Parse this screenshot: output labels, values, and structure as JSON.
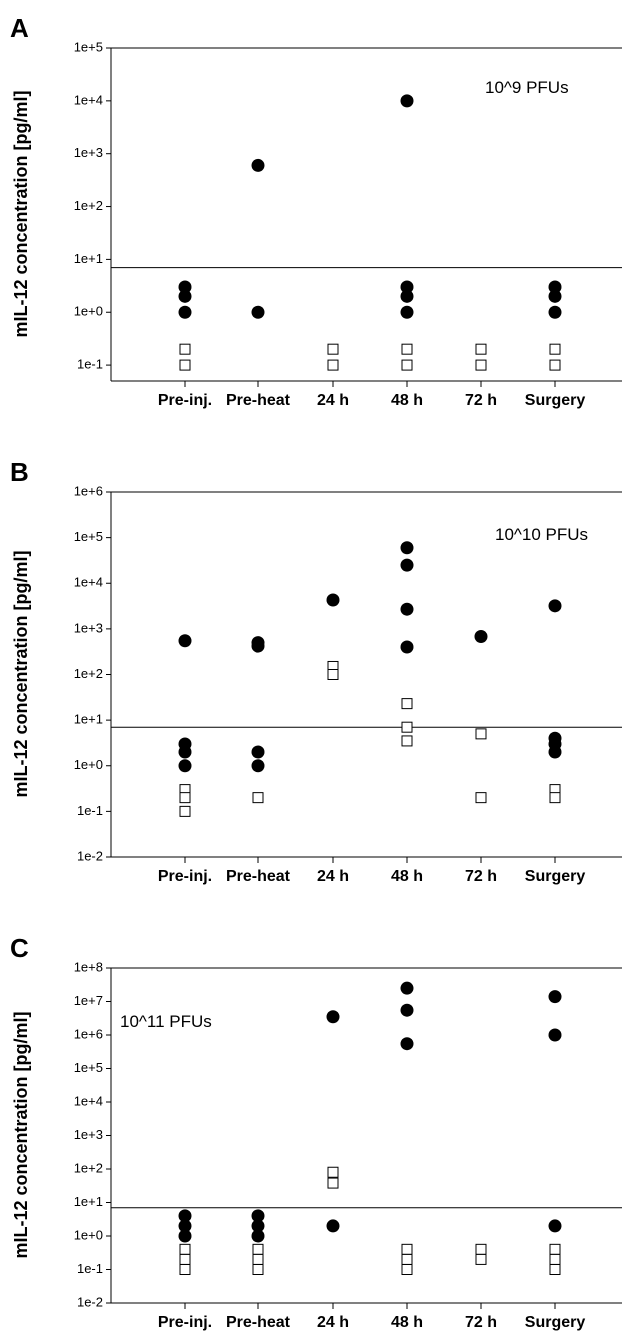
{
  "chart_data": [
    {
      "type": "scatter",
      "panel": "A",
      "annotation": "10^9 PFUs",
      "ylabel": "mIL-12 concentration [pg/ml]",
      "yscale": "log",
      "ylim": [
        0.05,
        100000
      ],
      "yticks": [
        "1e-1",
        "1e+0",
        "1e+1",
        "1e+2",
        "1e+3",
        "1e+4",
        "1e+5"
      ],
      "reference_line": 7,
      "categories": [
        "Pre-inj.",
        "Pre-heat",
        "24 h",
        "48 h",
        "72 h",
        "Surgery"
      ],
      "series": [
        {
          "marker": "filled-circle",
          "points": [
            [
              "Pre-inj.",
              1
            ],
            [
              "Pre-inj.",
              2
            ],
            [
              "Pre-inj.",
              3
            ],
            [
              "Pre-heat",
              600
            ],
            [
              "Pre-heat",
              1
            ],
            [
              "48 h",
              10000
            ],
            [
              "48 h",
              1
            ],
            [
              "48 h",
              2
            ],
            [
              "48 h",
              3
            ],
            [
              "Surgery",
              1
            ],
            [
              "Surgery",
              2
            ],
            [
              "Surgery",
              3
            ]
          ]
        },
        {
          "marker": "open-square",
          "points": [
            [
              "Pre-inj.",
              0.1
            ],
            [
              "Pre-inj.",
              0.2
            ],
            [
              "24 h",
              0.1
            ],
            [
              "24 h",
              0.2
            ],
            [
              "48 h",
              0.1
            ],
            [
              "48 h",
              0.2
            ],
            [
              "72 h",
              0.1
            ],
            [
              "72 h",
              0.2
            ],
            [
              "Surgery",
              0.1
            ],
            [
              "Surgery",
              0.2
            ]
          ]
        }
      ]
    },
    {
      "type": "scatter",
      "panel": "B",
      "annotation": "10^10 PFUs",
      "ylabel": "mIL-12 concentration [pg/ml]",
      "yscale": "log",
      "ylim": [
        0.01,
        1000000
      ],
      "yticks": [
        "1e-2",
        "1e-1",
        "1e+0",
        "1e+1",
        "1e+2",
        "1e+3",
        "1e+4",
        "1e+5",
        "1e+6"
      ],
      "reference_line": 7,
      "categories": [
        "Pre-inj.",
        "Pre-heat",
        "24 h",
        "48 h",
        "72 h",
        "Surgery"
      ],
      "series": [
        {
          "marker": "filled-circle",
          "points": [
            [
              "Pre-inj.",
              550
            ],
            [
              "Pre-inj.",
              3
            ],
            [
              "Pre-inj.",
              2
            ],
            [
              "Pre-inj.",
              1
            ],
            [
              "Pre-heat",
              500
            ],
            [
              "Pre-heat",
              420
            ],
            [
              "Pre-heat",
              2
            ],
            [
              "Pre-heat",
              1
            ],
            [
              "24 h",
              4300
            ],
            [
              "48 h",
              60000
            ],
            [
              "48 h",
              25000
            ],
            [
              "48 h",
              2700
            ],
            [
              "48 h",
              400
            ],
            [
              "72 h",
              680
            ],
            [
              "Surgery",
              3200
            ],
            [
              "Surgery",
              4
            ],
            [
              "Surgery",
              3
            ],
            [
              "Surgery",
              2
            ]
          ]
        },
        {
          "marker": "open-square",
          "points": [
            [
              "Pre-inj.",
              0.3
            ],
            [
              "Pre-inj.",
              0.2
            ],
            [
              "Pre-inj.",
              0.1
            ],
            [
              "Pre-heat",
              0.2
            ],
            [
              "24 h",
              150
            ],
            [
              "24 h",
              100
            ],
            [
              "48 h",
              23
            ],
            [
              "48 h",
              7
            ],
            [
              "48 h",
              3.5
            ],
            [
              "72 h",
              5
            ],
            [
              "72 h",
              0.2
            ],
            [
              "Surgery",
              0.3
            ],
            [
              "Surgery",
              0.2
            ]
          ]
        }
      ]
    },
    {
      "type": "scatter",
      "panel": "C",
      "annotation": "10^11 PFUs",
      "ylabel": "mIL-12 concentration [pg/ml]",
      "yscale": "log",
      "ylim": [
        0.01,
        100000000
      ],
      "yticks": [
        "1e-2",
        "1e-1",
        "1e+0",
        "1e+1",
        "1e+2",
        "1e+3",
        "1e+4",
        "1e+5",
        "1e+6",
        "1e+7",
        "1e+8"
      ],
      "reference_line": 7,
      "categories": [
        "Pre-inj.",
        "Pre-heat",
        "24 h",
        "48 h",
        "72 h",
        "Surgery"
      ],
      "series": [
        {
          "marker": "filled-circle",
          "points": [
            [
              "Pre-inj.",
              4
            ],
            [
              "Pre-inj.",
              2
            ],
            [
              "Pre-inj.",
              1
            ],
            [
              "Pre-heat",
              4
            ],
            [
              "Pre-heat",
              2
            ],
            [
              "Pre-heat",
              1
            ],
            [
              "24 h",
              3500000
            ],
            [
              "24 h",
              2
            ],
            [
              "48 h",
              25000000
            ],
            [
              "48 h",
              5500000
            ],
            [
              "48 h",
              550000
            ],
            [
              "Surgery",
              14000000
            ],
            [
              "Surgery",
              1000000
            ],
            [
              "Surgery",
              2
            ]
          ]
        },
        {
          "marker": "open-square",
          "points": [
            [
              "Pre-inj.",
              0.4
            ],
            [
              "Pre-inj.",
              0.2
            ],
            [
              "Pre-inj.",
              0.1
            ],
            [
              "Pre-heat",
              0.4
            ],
            [
              "Pre-heat",
              0.2
            ],
            [
              "Pre-heat",
              0.1
            ],
            [
              "24 h",
              80
            ],
            [
              "24 h",
              38
            ],
            [
              "48 h",
              0.4
            ],
            [
              "48 h",
              0.2
            ],
            [
              "48 h",
              0.1
            ],
            [
              "72 h",
              0.4
            ],
            [
              "72 h",
              0.2
            ],
            [
              "Surgery",
              0.4
            ],
            [
              "Surgery",
              0.2
            ],
            [
              "Surgery",
              0.1
            ]
          ]
        }
      ]
    }
  ]
}
